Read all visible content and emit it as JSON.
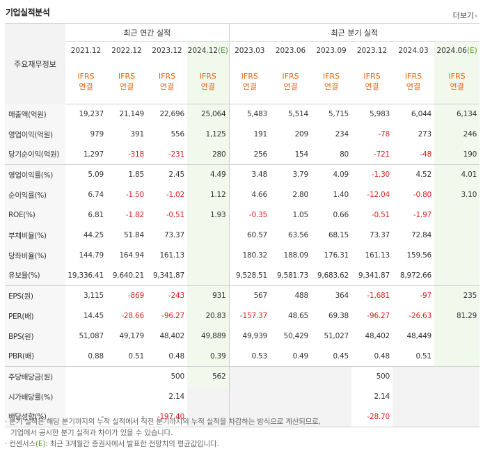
{
  "header": {
    "title": "기업실적분석",
    "more_label": "더보기"
  },
  "table": {
    "row_header": "주요재무정보",
    "annual_group": "최근 연간 실적",
    "quarter_group": "최근 분기 실적",
    "periods": [
      {
        "label": "2021.12",
        "est": ""
      },
      {
        "label": "2022.12",
        "est": ""
      },
      {
        "label": "2023.12",
        "est": ""
      },
      {
        "label": "2024.12",
        "est": "(E)"
      },
      {
        "label": "2023.03",
        "est": ""
      },
      {
        "label": "2023.06",
        "est": ""
      },
      {
        "label": "2023.09",
        "est": ""
      },
      {
        "label": "2023.12",
        "est": ""
      },
      {
        "label": "2024.03",
        "est": ""
      },
      {
        "label": "2024.06",
        "est": "(E)"
      }
    ],
    "basis_line1": "IFRS",
    "basis_line2": "연결",
    "rows": [
      {
        "label": "매출액(억원)",
        "values": [
          "19,237",
          "21,149",
          "22,696",
          "25,064",
          "5,483",
          "5,514",
          "5,715",
          "5,983",
          "6,044",
          "6,134"
        ]
      },
      {
        "label": "영업이익(억원)",
        "values": [
          "979",
          "391",
          "556",
          "1,125",
          "191",
          "209",
          "234",
          "-78",
          "273",
          "246"
        ]
      },
      {
        "label": "당기순이익(억원)",
        "values": [
          "1,297",
          "-318",
          "-231",
          "280",
          "256",
          "154",
          "80",
          "-721",
          "-48",
          "190"
        ]
      },
      {
        "label": "영업이익률(%)",
        "values": [
          "5.09",
          "1.85",
          "2.45",
          "4.49",
          "3.48",
          "3.79",
          "4.09",
          "-1.30",
          "4.52",
          "4.01"
        ]
      },
      {
        "label": "순이익률(%)",
        "values": [
          "6.74",
          "-1.50",
          "-1.02",
          "1.12",
          "4.66",
          "2.80",
          "1.40",
          "-12.04",
          "-0.80",
          "3.10"
        ]
      },
      {
        "label": "ROE(%)",
        "values": [
          "6.81",
          "-1.82",
          "-0.51",
          "1.93",
          "-0.35",
          "1.05",
          "0.66",
          "-0.51",
          "-1.97",
          ""
        ]
      },
      {
        "label": "부채비율(%)",
        "values": [
          "44.25",
          "51.84",
          "73.37",
          "",
          "60.57",
          "63.56",
          "68.15",
          "73.37",
          "72.84",
          ""
        ]
      },
      {
        "label": "당좌비율(%)",
        "values": [
          "144.79",
          "164.94",
          "161.13",
          "",
          "180.32",
          "188.09",
          "176.31",
          "161.13",
          "159.56",
          ""
        ]
      },
      {
        "label": "유보율(%)",
        "values": [
          "19,336.41",
          "9,640.21",
          "9,341.87",
          "",
          "9,528.51",
          "9,581.73",
          "9,683.62",
          "9,341.87",
          "8,972.66",
          ""
        ]
      },
      {
        "label": "EPS(원)",
        "values": [
          "3,115",
          "-869",
          "-243",
          "931",
          "567",
          "488",
          "364",
          "-1,681",
          "-97",
          "235"
        ]
      },
      {
        "label": "PER(배)",
        "values": [
          "14.45",
          "-28.66",
          "-96.27",
          "20.83",
          "-157.37",
          "48.65",
          "69.38",
          "-96.27",
          "-26.63",
          "81.29"
        ]
      },
      {
        "label": "BPS(원)",
        "values": [
          "51,087",
          "49,179",
          "48,402",
          "49,889",
          "49,939",
          "50,429",
          "51,027",
          "48,402",
          "48,449",
          ""
        ]
      },
      {
        "label": "PBR(배)",
        "values": [
          "0.88",
          "0.51",
          "0.48",
          "0.39",
          "0.53",
          "0.49",
          "0.45",
          "0.48",
          "0.51",
          ""
        ]
      },
      {
        "label": "주당배당금(원)",
        "values": [
          "",
          "",
          "500",
          "562",
          "",
          "",
          "",
          "500",
          "",
          ""
        ]
      },
      {
        "label": "시가배당률(%)",
        "values": [
          "",
          "",
          "2.14",
          "",
          "",
          "",
          "",
          "2.14",
          "",
          ""
        ]
      },
      {
        "label": "배당성향(%)",
        "values": [
          "-",
          "-",
          "-197.40",
          "",
          "",
          "",
          "",
          "-28.70",
          "",
          ""
        ]
      }
    ]
  },
  "notes": {
    "line1": "분기 실적은 해당 분기까지의 누적 실적에서 직전 분기까지의 누적 실적을 차감하는 방식으로 계산되므로,",
    "line2": "기업에서 공시한 분기 실적과 차이가 있을 수 있습니다.",
    "line3_prefix": "컨센서스",
    "line3_e": "(E)",
    "line3_rest": ": 최근 3개월간 증권사에서 발표한 전망치의 평균값입니다."
  },
  "colors": {
    "accent_orange": "#e8620c",
    "negative_red": "#e02020",
    "estimate_green": "#4e9a1d",
    "estimate_bg": "#f1f8ec"
  }
}
